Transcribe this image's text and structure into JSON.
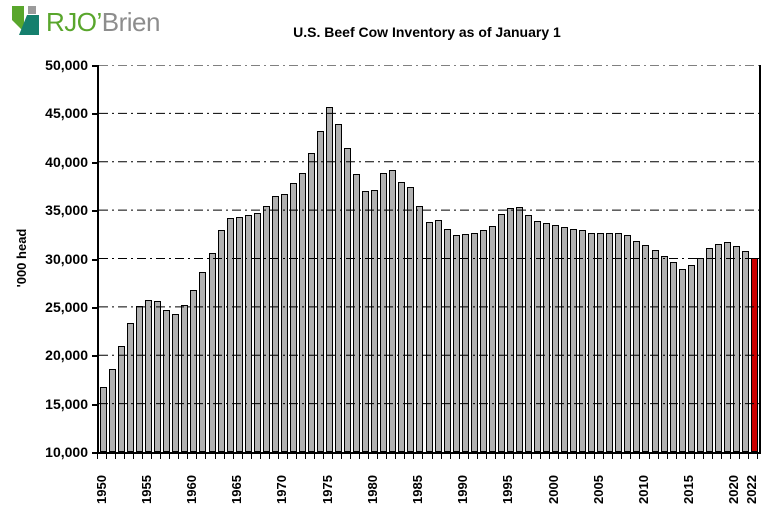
{
  "logo": {
    "text_primary": "RJO’",
    "text_secondary": "Brien",
    "colors": {
      "green": "#59a62c",
      "teal": "#157f6d",
      "gray_square": "#9b9b9b",
      "text_green": "#59a62c",
      "text_gray": "#8d8d8d"
    }
  },
  "chart_data": {
    "type": "bar",
    "title": "U.S. Beef Cow Inventory as of January 1",
    "xlabel": "",
    "ylabel": "'000 head",
    "ylim": [
      10000,
      50000
    ],
    "grid": "horizontal dash-dot lines every 5,000, drawn over bars",
    "legend": "none",
    "bar_color": "#b1b1b1",
    "bar_border_color": "#000000",
    "highlight_year": 2022,
    "highlight_color": "#cc0000",
    "yticks": [
      {
        "value": 50000,
        "label": "50,000"
      },
      {
        "value": 45000,
        "label": "45,000"
      },
      {
        "value": 40000,
        "label": "40,000"
      },
      {
        "value": 35000,
        "label": "35,000"
      },
      {
        "value": 30000,
        "label": "30,000"
      },
      {
        "value": 25000,
        "label": "25,000"
      },
      {
        "value": 20000,
        "label": "20,000"
      },
      {
        "value": 15000,
        "label": "15,000"
      },
      {
        "value": 10000,
        "label": "10,000"
      }
    ],
    "x_labeled_years": [
      1950,
      1955,
      1960,
      1965,
      1970,
      1975,
      1980,
      1985,
      1990,
      1995,
      2000,
      2005,
      2010,
      2015,
      2020,
      2022
    ],
    "categories": [
      1950,
      1951,
      1952,
      1953,
      1954,
      1955,
      1956,
      1957,
      1958,
      1959,
      1960,
      1961,
      1962,
      1963,
      1964,
      1965,
      1966,
      1967,
      1968,
      1969,
      1970,
      1971,
      1972,
      1973,
      1974,
      1975,
      1976,
      1977,
      1978,
      1979,
      1980,
      1981,
      1982,
      1983,
      1984,
      1985,
      1986,
      1987,
      1988,
      1989,
      1990,
      1991,
      1992,
      1993,
      1994,
      1995,
      1996,
      1997,
      1998,
      1999,
      2000,
      2001,
      2002,
      2003,
      2004,
      2005,
      2006,
      2007,
      2008,
      2009,
      2010,
      2011,
      2012,
      2013,
      2014,
      2015,
      2016,
      2017,
      2018,
      2019,
      2020,
      2021,
      2022
    ],
    "values": [
      16700,
      18600,
      21000,
      23300,
      25100,
      25700,
      25600,
      24700,
      24300,
      25200,
      26700,
      28600,
      30600,
      32900,
      34200,
      34300,
      34500,
      34700,
      35400,
      36500,
      36700,
      37800,
      38800,
      40900,
      43200,
      45700,
      43900,
      41400,
      38700,
      37000,
      37100,
      38800,
      39200,
      37900,
      37400,
      35400,
      33800,
      34000,
      33100,
      32400,
      32500,
      32600,
      32900,
      33400,
      34600,
      35200,
      35300,
      34500,
      33900,
      33700,
      33500,
      33300,
      33100,
      32900,
      32600,
      32600,
      32600,
      32600,
      32400,
      31800,
      31400,
      30900,
      30300,
      29600,
      28900,
      29300,
      30100,
      31100,
      31500,
      31700,
      31300,
      30800,
      30100
    ]
  }
}
